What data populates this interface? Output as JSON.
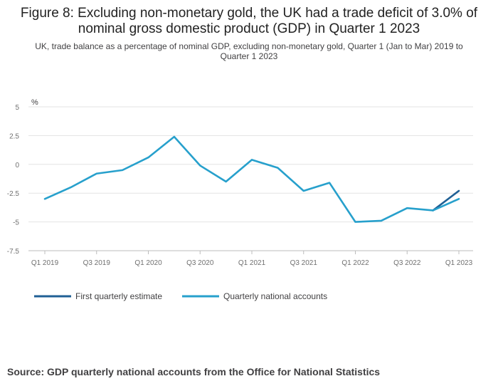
{
  "header": {
    "title": "Figure 8: Excluding non-monetary gold, the UK had a trade deficit of 3.0% of nominal gross domestic product (GDP) in Quarter 1 2023",
    "subtitle": "UK, trade balance as a percentage of nominal GDP, excluding non-monetary gold, Quarter 1 (Jan to Mar) 2019 to Quarter 1 2023"
  },
  "footer": {
    "source": "Source: GDP quarterly national accounts from the Office for National Statistics"
  },
  "chart_data": {
    "type": "line",
    "title": "Figure 8: Excluding non-monetary gold, the UK had a trade deficit of 3.0% of nominal gross domestic product (GDP) in Quarter 1 2023",
    "subtitle": "UK, trade balance as a percentage of nominal GDP, excluding non-monetary gold, Quarter 1 (Jan to Mar) 2019 to Quarter 1 2023",
    "ylabel": "%",
    "xlabel": "",
    "ylim": [
      -7.5,
      5
    ],
    "yticks": [
      5,
      2.5,
      0,
      -2.5,
      -5,
      -7.5
    ],
    "ytick_labels": [
      "5",
      "2.5",
      "0",
      "-2.5",
      "-5",
      "-7.5"
    ],
    "categories": [
      "Q1 2019",
      "Q2 2019",
      "Q3 2019",
      "Q4 2019",
      "Q1 2020",
      "Q2 2020",
      "Q3 2020",
      "Q4 2020",
      "Q1 2021",
      "Q2 2021",
      "Q3 2021",
      "Q4 2021",
      "Q1 2022",
      "Q2 2022",
      "Q3 2022",
      "Q4 2022",
      "Q1 2023"
    ],
    "tick_labels": [
      "Q1 2019",
      "Q3 2019",
      "Q1 2020",
      "Q3 2020",
      "Q1 2021",
      "Q3 2021",
      "Q1 2022",
      "Q3 2022",
      "Q1 2023"
    ],
    "grid": true,
    "legend_position": "bottom-left",
    "series": [
      {
        "name": "First quarterly estimate",
        "color": "#206095",
        "values": [
          null,
          null,
          null,
          null,
          null,
          null,
          null,
          null,
          null,
          null,
          null,
          null,
          null,
          null,
          null,
          -4.0,
          -2.3
        ]
      },
      {
        "name": "Quarterly national accounts",
        "color": "#27a0cc",
        "values": [
          -3.0,
          -2.0,
          -0.8,
          -0.5,
          0.6,
          2.4,
          -0.1,
          -1.5,
          0.4,
          -0.3,
          -2.3,
          -1.6,
          -5.0,
          -4.9,
          -3.8,
          -4.0,
          -3.0
        ]
      }
    ]
  }
}
